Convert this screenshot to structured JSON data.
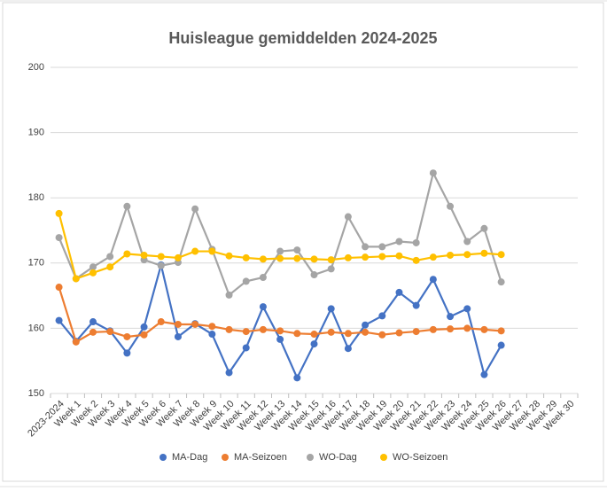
{
  "chart_data": {
    "type": "line",
    "title": "Huisleague gemiddelden 2024-2025",
    "categories": [
      "2023-2024",
      "Week 1",
      "Week 2",
      "Week 3",
      "Week 4",
      "Week 5",
      "Week 6",
      "Week 7",
      "Week 8",
      "Week 9",
      "Week 10",
      "Week 11",
      "Week 12",
      "Week 13",
      "Week 14",
      "Week 15",
      "Week 16",
      "Week 17",
      "Week 18",
      "Week 19",
      "Week 20",
      "Week 21",
      "Week 22",
      "Week 23",
      "Week 24",
      "Week 25",
      "Week 26",
      "Week 27",
      "Week 28",
      "Week 29",
      "Week 30"
    ],
    "series": [
      {
        "name": "MA-Dag",
        "color": "#4472c4",
        "values": [
          161.2,
          158,
          161,
          159.6,
          156.2,
          160.2,
          169.7,
          158.7,
          160.7,
          159.1,
          153.2,
          157,
          163.3,
          158.3,
          152.4,
          157.6,
          163,
          156.9,
          160.5,
          161.9,
          165.5,
          163.5,
          167.5,
          161.8,
          163,
          152.9,
          157.4,
          null,
          null,
          null,
          null
        ]
      },
      {
        "name": "MA-Seizoen",
        "color": "#ed7d31",
        "values": [
          166.3,
          157.9,
          159.4,
          159.5,
          158.7,
          159,
          161,
          160.6,
          160.6,
          160.3,
          159.8,
          159.5,
          159.8,
          159.6,
          159.2,
          159.1,
          159.4,
          159.2,
          159.4,
          159,
          159.3,
          159.5,
          159.8,
          159.9,
          160,
          159.8,
          159.6,
          null,
          null,
          null,
          null
        ]
      },
      {
        "name": "WO-Dag",
        "color": "#a5a5a5",
        "values": [
          173.9,
          167.6,
          169.4,
          171,
          178.7,
          170.5,
          169.6,
          170.1,
          178.3,
          172.1,
          165.1,
          167.2,
          167.8,
          171.8,
          172,
          168.2,
          169.1,
          177.1,
          172.5,
          172.5,
          173.3,
          173.1,
          183.8,
          178.7,
          173.3,
          175.3,
          167.1,
          null,
          null,
          null,
          null
        ]
      },
      {
        "name": "WO-Seizoen",
        "color": "#ffc000",
        "values": [
          177.6,
          167.6,
          168.5,
          169.4,
          171.4,
          171.2,
          171,
          170.8,
          171.8,
          171.8,
          171.1,
          170.8,
          170.6,
          170.7,
          170.7,
          170.6,
          170.5,
          170.8,
          170.9,
          171,
          171.1,
          170.4,
          170.9,
          171.2,
          171.3,
          171.5,
          171.3,
          null,
          null,
          null,
          null
        ]
      }
    ],
    "ylim": [
      150,
      200
    ],
    "yticks": [
      150,
      160,
      170,
      180,
      190,
      200
    ],
    "grid": true,
    "legend": "bottom"
  }
}
